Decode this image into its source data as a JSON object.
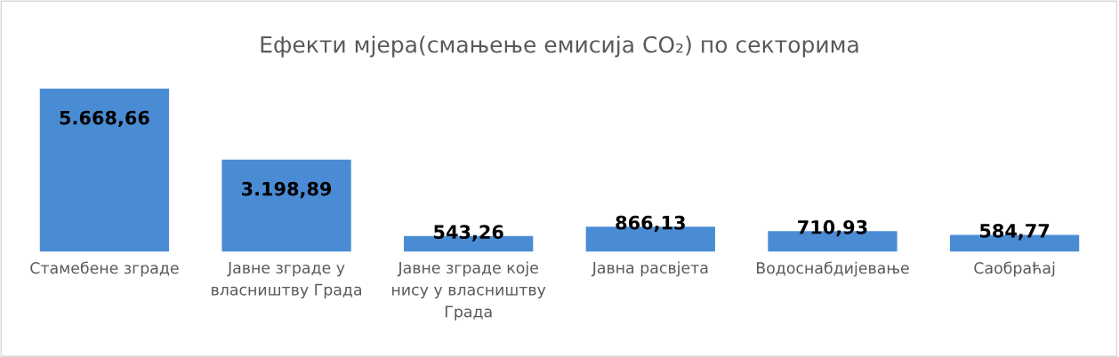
{
  "chart_data": {
    "type": "bar",
    "title": "Ефекти мјера(смањење емисија CO₂) по секторима",
    "categories": [
      "Стамебене зграде",
      "Јавне зграде у власништву Града",
      "Јавне зграде које нису у власништву Града",
      "Јавна расвјета",
      "Водоснабдијевање",
      "Саобраћај"
    ],
    "values": [
      5668.66,
      3198.89,
      543.26,
      866.13,
      710.93,
      584.77
    ],
    "value_labels": [
      "5.668,66",
      "3.198,89",
      "543,26",
      "866,13",
      "710,93",
      "584,77"
    ],
    "color": "#4a8cd4",
    "grid": false,
    "legend": false
  }
}
